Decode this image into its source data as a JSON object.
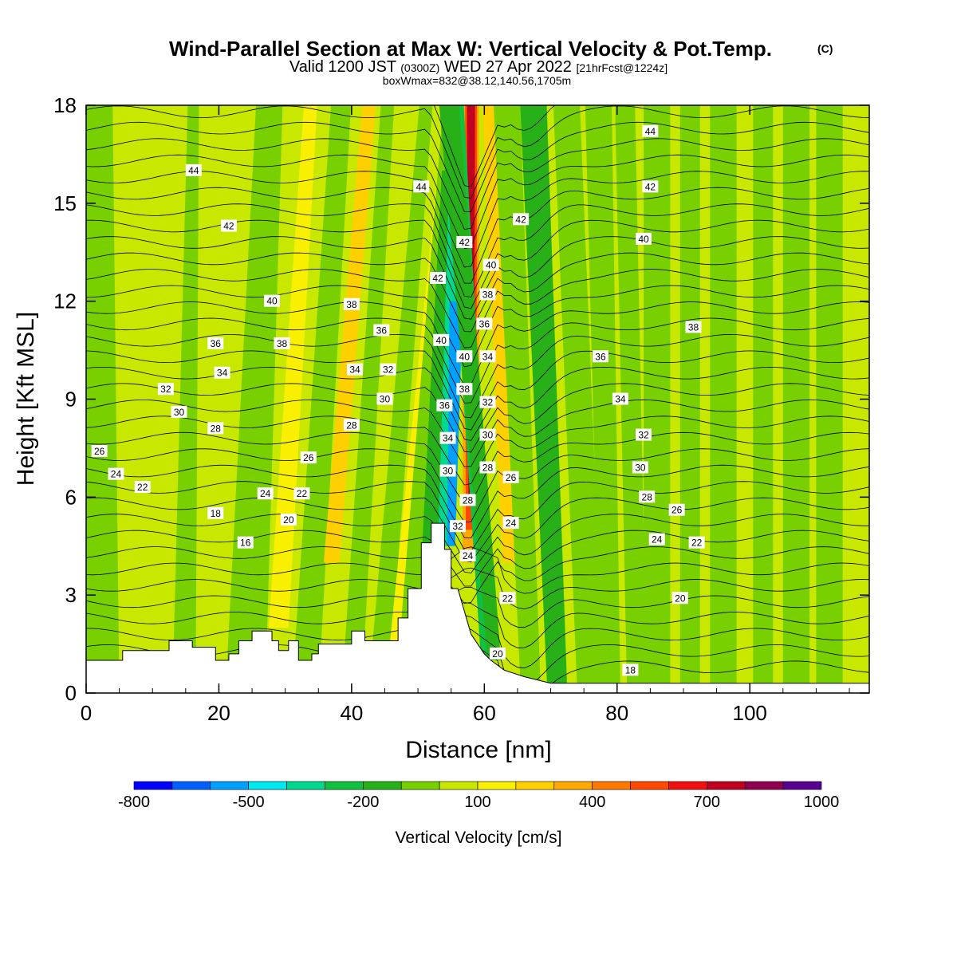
{
  "header": {
    "title_main": "Wind-Parallel Section at Max W: Vertical Velocity & Pot.Temp.",
    "title_mark": "(C)",
    "valid_prefix": "Valid 1200 JST",
    "valid_utc": "(0300Z)",
    "valid_date": "WED 27 Apr 2022",
    "valid_fcst": "[21hrFcst@1224z]",
    "box_line": "boxWmax=832@38.12,140.56,1705m"
  },
  "chart_data": {
    "type": "heatmap",
    "xlabel": "Distance [nm]",
    "ylabel": "Height [Kft MSL]",
    "xlim": [
      0,
      118
    ],
    "ylim": [
      0,
      18
    ],
    "x_ticks": [
      "0",
      "20",
      "40",
      "60",
      "80",
      "100"
    ],
    "x_tick_values": [
      0,
      20,
      40,
      60,
      80,
      100
    ],
    "y_ticks": [
      "0",
      "3",
      "6",
      "9",
      "12",
      "15",
      "18"
    ],
    "y_tick_values": [
      0,
      3,
      6,
      9,
      12,
      15,
      18
    ],
    "colorbar": {
      "label": "Vertical Velocity [cm/s]",
      "levels": [
        -800,
        -700,
        -600,
        -500,
        -400,
        -300,
        -200,
        -100,
        0,
        100,
        200,
        300,
        400,
        500,
        600,
        700,
        800,
        900,
        1000
      ],
      "tick_labels": [
        "-800",
        "-500",
        "-200",
        "100",
        "400",
        "700",
        "1000"
      ],
      "tick_values": [
        -800,
        -500,
        -200,
        100,
        400,
        700,
        1000
      ],
      "colors": [
        "#0000ff",
        "#0060ff",
        "#00a0ff",
        "#00e8f0",
        "#00d890",
        "#10c040",
        "#28b018",
        "#78d000",
        "#c8e800",
        "#f8f000",
        "#ffd000",
        "#ffa800",
        "#ff7800",
        "#ff4800",
        "#f01010",
        "#c00020",
        "#900050",
        "#580090"
      ]
    },
    "contour_labels": [
      {
        "text": "44",
        "x": 16.2,
        "y": 16.0
      },
      {
        "text": "42",
        "x": 21.5,
        "y": 14.3
      },
      {
        "text": "40",
        "x": 28.0,
        "y": 12.0
      },
      {
        "text": "38",
        "x": 29.5,
        "y": 10.7
      },
      {
        "text": "36",
        "x": 19.5,
        "y": 10.7
      },
      {
        "text": "34",
        "x": 20.5,
        "y": 9.8
      },
      {
        "text": "32",
        "x": 12.0,
        "y": 9.3
      },
      {
        "text": "30",
        "x": 14.0,
        "y": 8.6
      },
      {
        "text": "28",
        "x": 19.5,
        "y": 8.1
      },
      {
        "text": "26",
        "x": 2.0,
        "y": 7.4
      },
      {
        "text": "24",
        "x": 4.5,
        "y": 6.7
      },
      {
        "text": "22",
        "x": 8.5,
        "y": 6.3
      },
      {
        "text": "18",
        "x": 19.5,
        "y": 5.5
      },
      {
        "text": "16",
        "x": 24.0,
        "y": 4.6
      },
      {
        "text": "24",
        "x": 27.0,
        "y": 6.1
      },
      {
        "text": "22",
        "x": 32.5,
        "y": 6.1
      },
      {
        "text": "20",
        "x": 30.5,
        "y": 5.3
      },
      {
        "text": "26",
        "x": 33.5,
        "y": 7.2
      },
      {
        "text": "28",
        "x": 40.0,
        "y": 8.2
      },
      {
        "text": "38",
        "x": 40.0,
        "y": 11.9
      },
      {
        "text": "34",
        "x": 40.5,
        "y": 9.9
      },
      {
        "text": "36",
        "x": 44.5,
        "y": 11.1
      },
      {
        "text": "32",
        "x": 45.5,
        "y": 9.9
      },
      {
        "text": "30",
        "x": 45.0,
        "y": 9.0
      },
      {
        "text": "44",
        "x": 50.5,
        "y": 15.5
      },
      {
        "text": "42",
        "x": 53.0,
        "y": 12.7
      },
      {
        "text": "40",
        "x": 53.5,
        "y": 10.8
      },
      {
        "text": "36",
        "x": 54.0,
        "y": 8.8
      },
      {
        "text": "34",
        "x": 54.5,
        "y": 7.8
      },
      {
        "text": "30",
        "x": 54.5,
        "y": 6.8
      },
      {
        "text": "32",
        "x": 56.0,
        "y": 5.1
      },
      {
        "text": "42",
        "x": 57.0,
        "y": 13.8
      },
      {
        "text": "40",
        "x": 57.0,
        "y": 10.3
      },
      {
        "text": "38",
        "x": 57.0,
        "y": 9.3
      },
      {
        "text": "28",
        "x": 57.5,
        "y": 5.9
      },
      {
        "text": "24",
        "x": 57.5,
        "y": 4.2
      },
      {
        "text": "40",
        "x": 61.0,
        "y": 13.1
      },
      {
        "text": "38",
        "x": 60.5,
        "y": 12.2
      },
      {
        "text": "36",
        "x": 60.0,
        "y": 11.3
      },
      {
        "text": "34",
        "x": 60.5,
        "y": 10.3
      },
      {
        "text": "32",
        "x": 60.5,
        "y": 8.9
      },
      {
        "text": "30",
        "x": 60.5,
        "y": 7.9
      },
      {
        "text": "28",
        "x": 60.5,
        "y": 6.9
      },
      {
        "text": "26",
        "x": 64.0,
        "y": 6.6
      },
      {
        "text": "24",
        "x": 64.0,
        "y": 5.2
      },
      {
        "text": "22",
        "x": 63.5,
        "y": 2.9
      },
      {
        "text": "20",
        "x": 62.0,
        "y": 1.2
      },
      {
        "text": "42",
        "x": 65.5,
        "y": 14.5
      },
      {
        "text": "44",
        "x": 85.0,
        "y": 17.2
      },
      {
        "text": "42",
        "x": 85.0,
        "y": 15.5
      },
      {
        "text": "40",
        "x": 84.0,
        "y": 13.9
      },
      {
        "text": "38",
        "x": 91.5,
        "y": 11.2
      },
      {
        "text": "36",
        "x": 77.5,
        "y": 10.3
      },
      {
        "text": "34",
        "x": 80.5,
        "y": 9.0
      },
      {
        "text": "32",
        "x": 84.0,
        "y": 7.9
      },
      {
        "text": "30",
        "x": 83.5,
        "y": 6.9
      },
      {
        "text": "28",
        "x": 84.5,
        "y": 6.0
      },
      {
        "text": "26",
        "x": 89.0,
        "y": 5.6
      },
      {
        "text": "24",
        "x": 86.0,
        "y": 4.7
      },
      {
        "text": "22",
        "x": 92.0,
        "y": 4.6
      },
      {
        "text": "20",
        "x": 89.5,
        "y": 2.9
      },
      {
        "text": "18",
        "x": 82.0,
        "y": 0.7
      }
    ]
  }
}
